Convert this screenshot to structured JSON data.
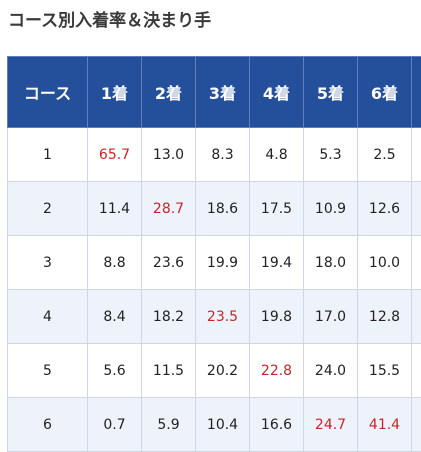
{
  "page_title": "コース別入着率＆決まり手",
  "table": {
    "headers": [
      "コース",
      "1着",
      "2着",
      "3着",
      "4着",
      "5着",
      "6着",
      ""
    ],
    "rows": [
      {
        "course": "1",
        "values": [
          "65.7",
          "13.0",
          "8.3",
          "4.8",
          "5.3",
          "2.5"
        ],
        "highlight_index": 0
      },
      {
        "course": "2",
        "values": [
          "11.4",
          "28.7",
          "18.6",
          "17.5",
          "10.9",
          "12.6"
        ],
        "highlight_index": 1
      },
      {
        "course": "3",
        "values": [
          "8.8",
          "23.6",
          "19.9",
          "19.4",
          "18.0",
          "10.0"
        ],
        "highlight_index": -1
      },
      {
        "course": "4",
        "values": [
          "8.4",
          "18.2",
          "23.5",
          "19.8",
          "17.0",
          "12.8"
        ],
        "highlight_index": 2
      },
      {
        "course": "5",
        "values": [
          "5.6",
          "11.5",
          "20.2",
          "22.8",
          "24.0",
          "15.5"
        ],
        "highlight_index": 3
      },
      {
        "course": "6",
        "values": [
          "0.7",
          "5.9",
          "10.4",
          "16.6",
          "24.7",
          "41.4"
        ],
        "highlight_indices": [
          4,
          5
        ]
      }
    ]
  },
  "colors": {
    "header_background": "#244f9b",
    "header_text": "#ffffff",
    "stripe_background": "#eef3fb",
    "highlight_text": "#c3262b",
    "border": "#cfd7e6"
  }
}
